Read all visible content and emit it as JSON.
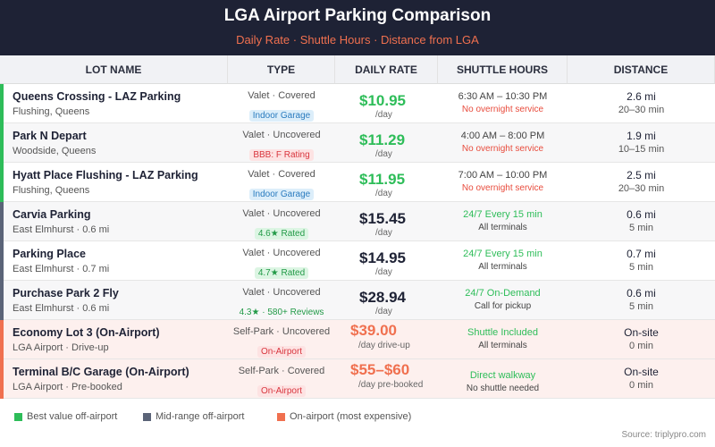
{
  "header": {
    "title": "LGA Airport Parking Comparison",
    "subtitle": "Daily Rate · Shuttle Hours · Distance from LGA"
  },
  "table": {
    "columns": [
      "LOT NAME",
      "TYPE",
      "DAILY RATE",
      "SHUTTLE HOURS",
      "DISTANCE"
    ],
    "rows": [
      {
        "name": "Queens Crossing - LAZ Parking",
        "location": "Flushing, Queens",
        "type": "Valet · Covered",
        "badge": "Indoor Garage",
        "rate": "$10.95",
        "rate_unit": "/day",
        "shuttle": "6:30 AM – 10:30 PM",
        "shuttle_note": "No overnight service",
        "distance": "2.6 mi",
        "time": "20–30 min"
      },
      {
        "name": "Park N Depart",
        "location": "Woodside, Queens",
        "type": "Valet · Uncovered",
        "badge": "BBB: F Rating",
        "rate": "$11.29",
        "rate_unit": "/day",
        "shuttle": "4:00 AM – 8:00 PM",
        "shuttle_note": "No overnight service",
        "distance": "1.9 mi",
        "time": "10–15 min"
      },
      {
        "name": "Hyatt Place Flushing - LAZ Parking",
        "location": "Flushing, Queens",
        "type": "Valet · Covered",
        "badge": "Indoor Garage",
        "rate": "$11.95",
        "rate_unit": "/day",
        "shuttle": "7:00 AM – 10:00 PM",
        "shuttle_note": "No overnight service",
        "distance": "2.5 mi",
        "time": "20–30 min"
      },
      {
        "name": "Carvia Parking",
        "location": "East Elmhurst · 0.6 mi",
        "type": "Valet · Uncovered",
        "badge": "4.6★ Rated",
        "rate": "$15.45",
        "rate_unit": "/day",
        "shuttle": "24/7 Every 15 min",
        "shuttle_note": "All terminals",
        "distance": "0.6 mi",
        "time": "5 min"
      },
      {
        "name": "Parking Place",
        "location": "East Elmhurst · 0.7 mi",
        "type": "Valet · Uncovered",
        "badge": "4.7★ Rated",
        "rate": "$14.95",
        "rate_unit": "/day",
        "shuttle": "24/7 Every 15 min",
        "shuttle_note": "All terminals",
        "distance": "0.7 mi",
        "time": "5 min"
      },
      {
        "name": "Purchase Park 2 Fly",
        "location": "East Elmhurst · 0.6 mi",
        "type": "Valet · Uncovered",
        "badge": "4.3★ · 580+ Reviews",
        "rate": "$28.94",
        "rate_unit": "/day",
        "shuttle": "24/7 On-Demand",
        "shuttle_note": "Call for pickup",
        "distance": "0.6 mi",
        "time": "5 min"
      },
      {
        "name": "Economy Lot 3 (On-Airport)",
        "location": "LGA Airport · Drive-up",
        "type": "Self-Park · Uncovered",
        "badge": "On-Airport",
        "rate": "$39.00",
        "rate_unit": "/day drive-up",
        "shuttle": "Shuttle Included",
        "shuttle_note": "All terminals",
        "distance": "On-site",
        "time": "0 min"
      },
      {
        "name": "Terminal B/C Garage (On-Airport)",
        "location": "LGA Airport · Pre-booked",
        "type": "Self-Park · Covered",
        "badge": "On-Airport",
        "rate": "$55–$60",
        "rate_unit": "/day pre-booked",
        "shuttle": "Direct walkway",
        "shuttle_note": "No shuttle needed",
        "distance": "On-site",
        "time": "0 min"
      }
    ]
  },
  "legend": [
    "Best value off-airport",
    "Mid-range off-airport",
    "On-airport (most expensive)"
  ],
  "source": "Source: triplypro.com"
}
